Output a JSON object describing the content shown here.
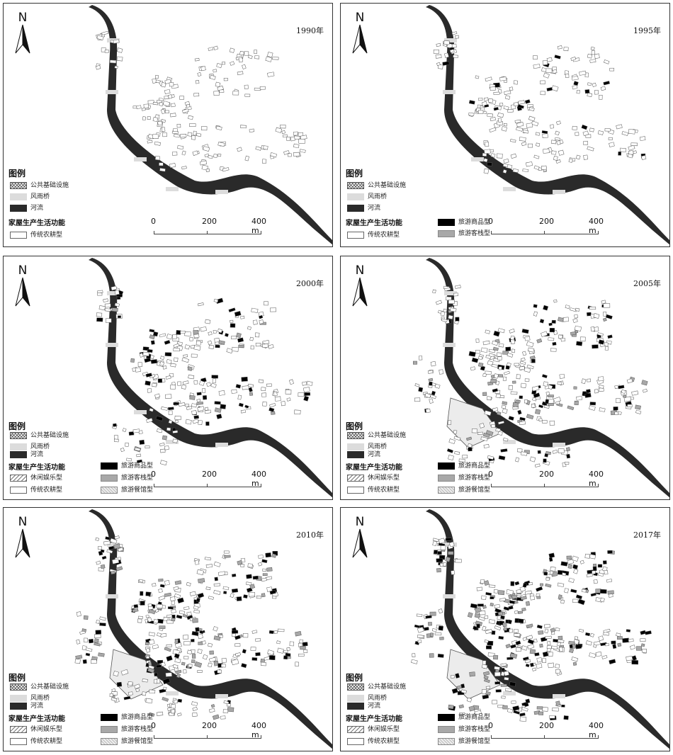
{
  "panels": [
    {
      "year": "1990年",
      "stage": 0
    },
    {
      "year": "1995年",
      "stage": 1
    },
    {
      "year": "2000年",
      "stage": 2
    },
    {
      "year": "2005年",
      "stage": 3
    },
    {
      "year": "2010年",
      "stage": 4
    },
    {
      "year": "2017年",
      "stage": 5
    }
  ],
  "north_label": "N",
  "legend": {
    "title": "图例",
    "public": "公共基础设施",
    "bridge": "风雨桥",
    "river": "河流",
    "function_title": "家屋生产生活功能",
    "traditional": "传统农耕型",
    "leisure": "休闲娱乐型",
    "shop": "旅游商品型",
    "inn": "旅游客栈型",
    "restaurant": "旅游餐馆型"
  },
  "scale": {
    "t0": "0",
    "t1": "200",
    "t2": "400 m"
  },
  "colors": {
    "river": "#2a2a2a",
    "bridge": "#dcdcdc",
    "shop": "#000000",
    "inn": "#a8a8a8",
    "outline": "#555555"
  }
}
